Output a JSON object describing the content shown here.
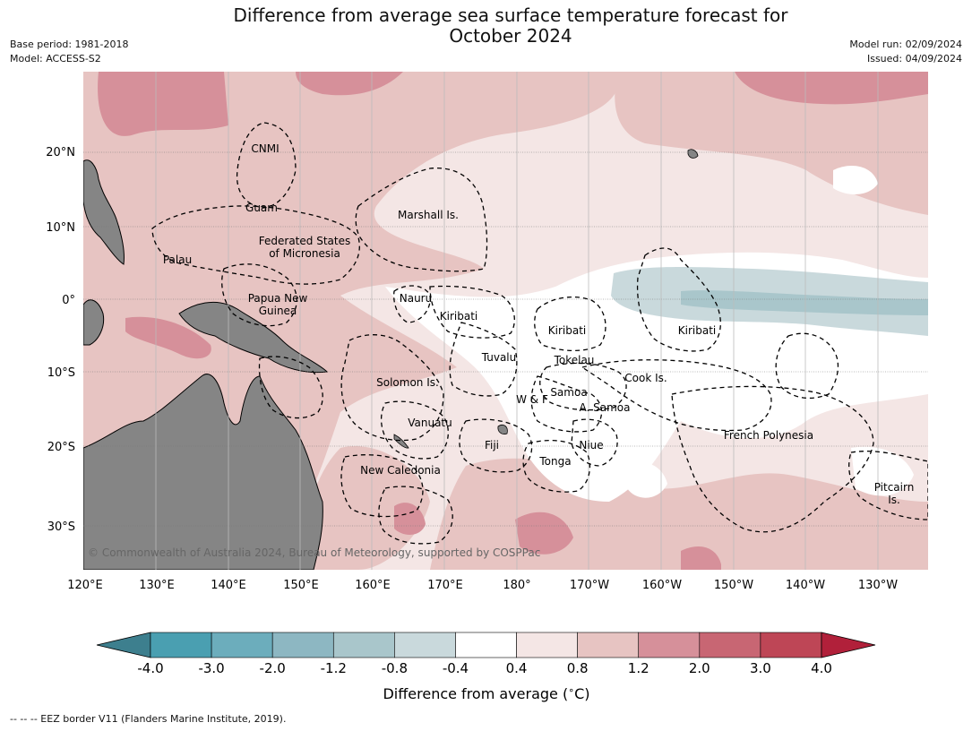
{
  "title": {
    "line1": "Difference from average sea surface temperature forecast for",
    "line2": "October 2024"
  },
  "meta": {
    "base_period": "Base period: 1981-2018",
    "model": "Model: ACCESS-S2",
    "model_run": "Model run: 02/09/2024",
    "issued": "Issued: 04/09/2024"
  },
  "map": {
    "lon_labels": [
      "120°E",
      "130°E",
      "140°E",
      "150°E",
      "160°E",
      "170°E",
      "180°",
      "170°W",
      "160°W",
      "150°W",
      "140°W",
      "130°W"
    ],
    "lat_labels": [
      "20°N",
      "10°N",
      "0°",
      "10°S",
      "20°S",
      "30°S"
    ],
    "places": {
      "cnmi": "CNMI",
      "guam": "Guam",
      "marshall": "Marshall Is.",
      "fsm_1": "Federated States",
      "fsm_2": "of Micronesia",
      "palau": "Palau",
      "nauru": "Nauru",
      "kiribati_w": "Kiribati",
      "kiribati_c": "Kiribati",
      "kiribati_e": "Kiribati",
      "png_1": "Papua New",
      "png_2": "Guinea",
      "tuvalu": "Tuvalu",
      "tokelau": "Tokelau",
      "solomon": "Solomon Is.",
      "samoa": "Samoa",
      "wf": "W & F",
      "asamoa": "A. Samoa",
      "cook": "Cook Is.",
      "vanuatu": "Vanuatu",
      "fiji": "Fiji",
      "niue": "Niue",
      "tonga": "Tonga",
      "frpoly": "French Polynesia",
      "newcal": "New Caledonia",
      "pitcairn_1": "Pitcairn",
      "pitcairn_2": "Is."
    },
    "copyright": "© Commonwealth of Australia 2024, Bureau of Meteorology, supported by COSPPac"
  },
  "colorbar": {
    "ticks": [
      "-4.0",
      "-3.0",
      "-2.0",
      "-1.2",
      "-0.8",
      "-0.4",
      "0.4",
      "0.8",
      "1.2",
      "2.0",
      "3.0",
      "4.0"
    ],
    "colors": [
      "#4a9fb1",
      "#6cadbc",
      "#8db7c2",
      "#a9c6cb",
      "#c9d9dc",
      "#ffffff",
      "#f4e6e5",
      "#e7c4c2",
      "#d6909a",
      "#c86673",
      "#be4656"
    ],
    "under_color": "#3d7f8e",
    "over_color": "#b1203a",
    "label": "Difference from average ($^\\circ$C)"
  },
  "colors": {
    "land": "#858585",
    "warm_light": "#f4e6e5",
    "warm_mid": "#e7c4c2",
    "warm_strong": "#d6909a",
    "cool": "#c9d9dc",
    "cool_mid": "#a9c6cb"
  },
  "footnote": "--  --  -- EEZ border V11 (Flanders Marine Institute, 2019)."
}
